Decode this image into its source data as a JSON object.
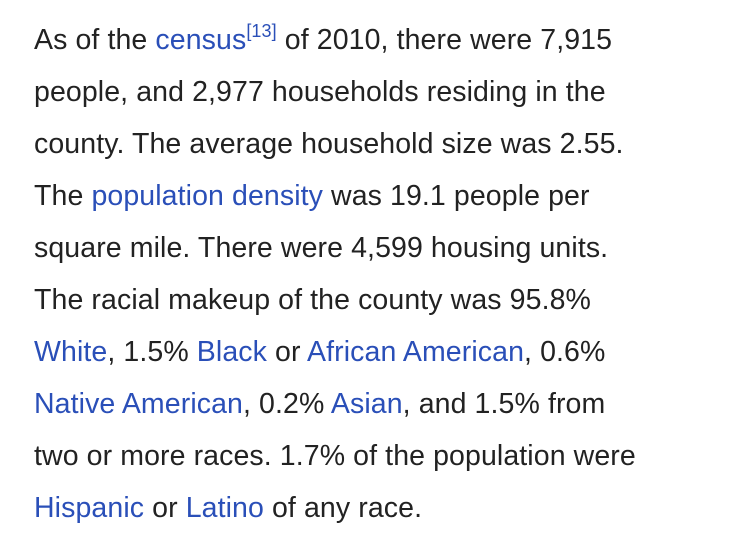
{
  "paragraph": {
    "l1": {
      "a": "As of the ",
      "link_census": "census",
      "ref": "[13]",
      "b": " of 2010, there were 7,915"
    },
    "l2": {
      "a": "people, and 2,977 households residing in the"
    },
    "l3": {
      "a": "county. The average household size was 2.55."
    },
    "l4": {
      "a": "The ",
      "link_population_density": "population density",
      "b": " was 19.1 people per"
    },
    "l5": {
      "a": "square mile. There were 4,599 housing units."
    },
    "l6": {
      "a": "The racial makeup of the county was 95.8%"
    },
    "l7": {
      "link_white": "White",
      "a": ", 1.5% ",
      "link_black": "Black",
      "b": " or ",
      "link_african_american": "African American",
      "c": ", 0.6%"
    },
    "l8": {
      "link_native_american": "Native American",
      "a": ", 0.2% ",
      "link_asian": "Asian",
      "b": ", and 1.5% from"
    },
    "l9": {
      "a": "two or more races. 1.7% of the population were"
    },
    "l10": {
      "link_hispanic": "Hispanic",
      "a": " or ",
      "link_latino": "Latino",
      "b": " of any race."
    }
  },
  "colors": {
    "text": "#222222",
    "link": "#2a4fb8",
    "background": "#ffffff"
  }
}
